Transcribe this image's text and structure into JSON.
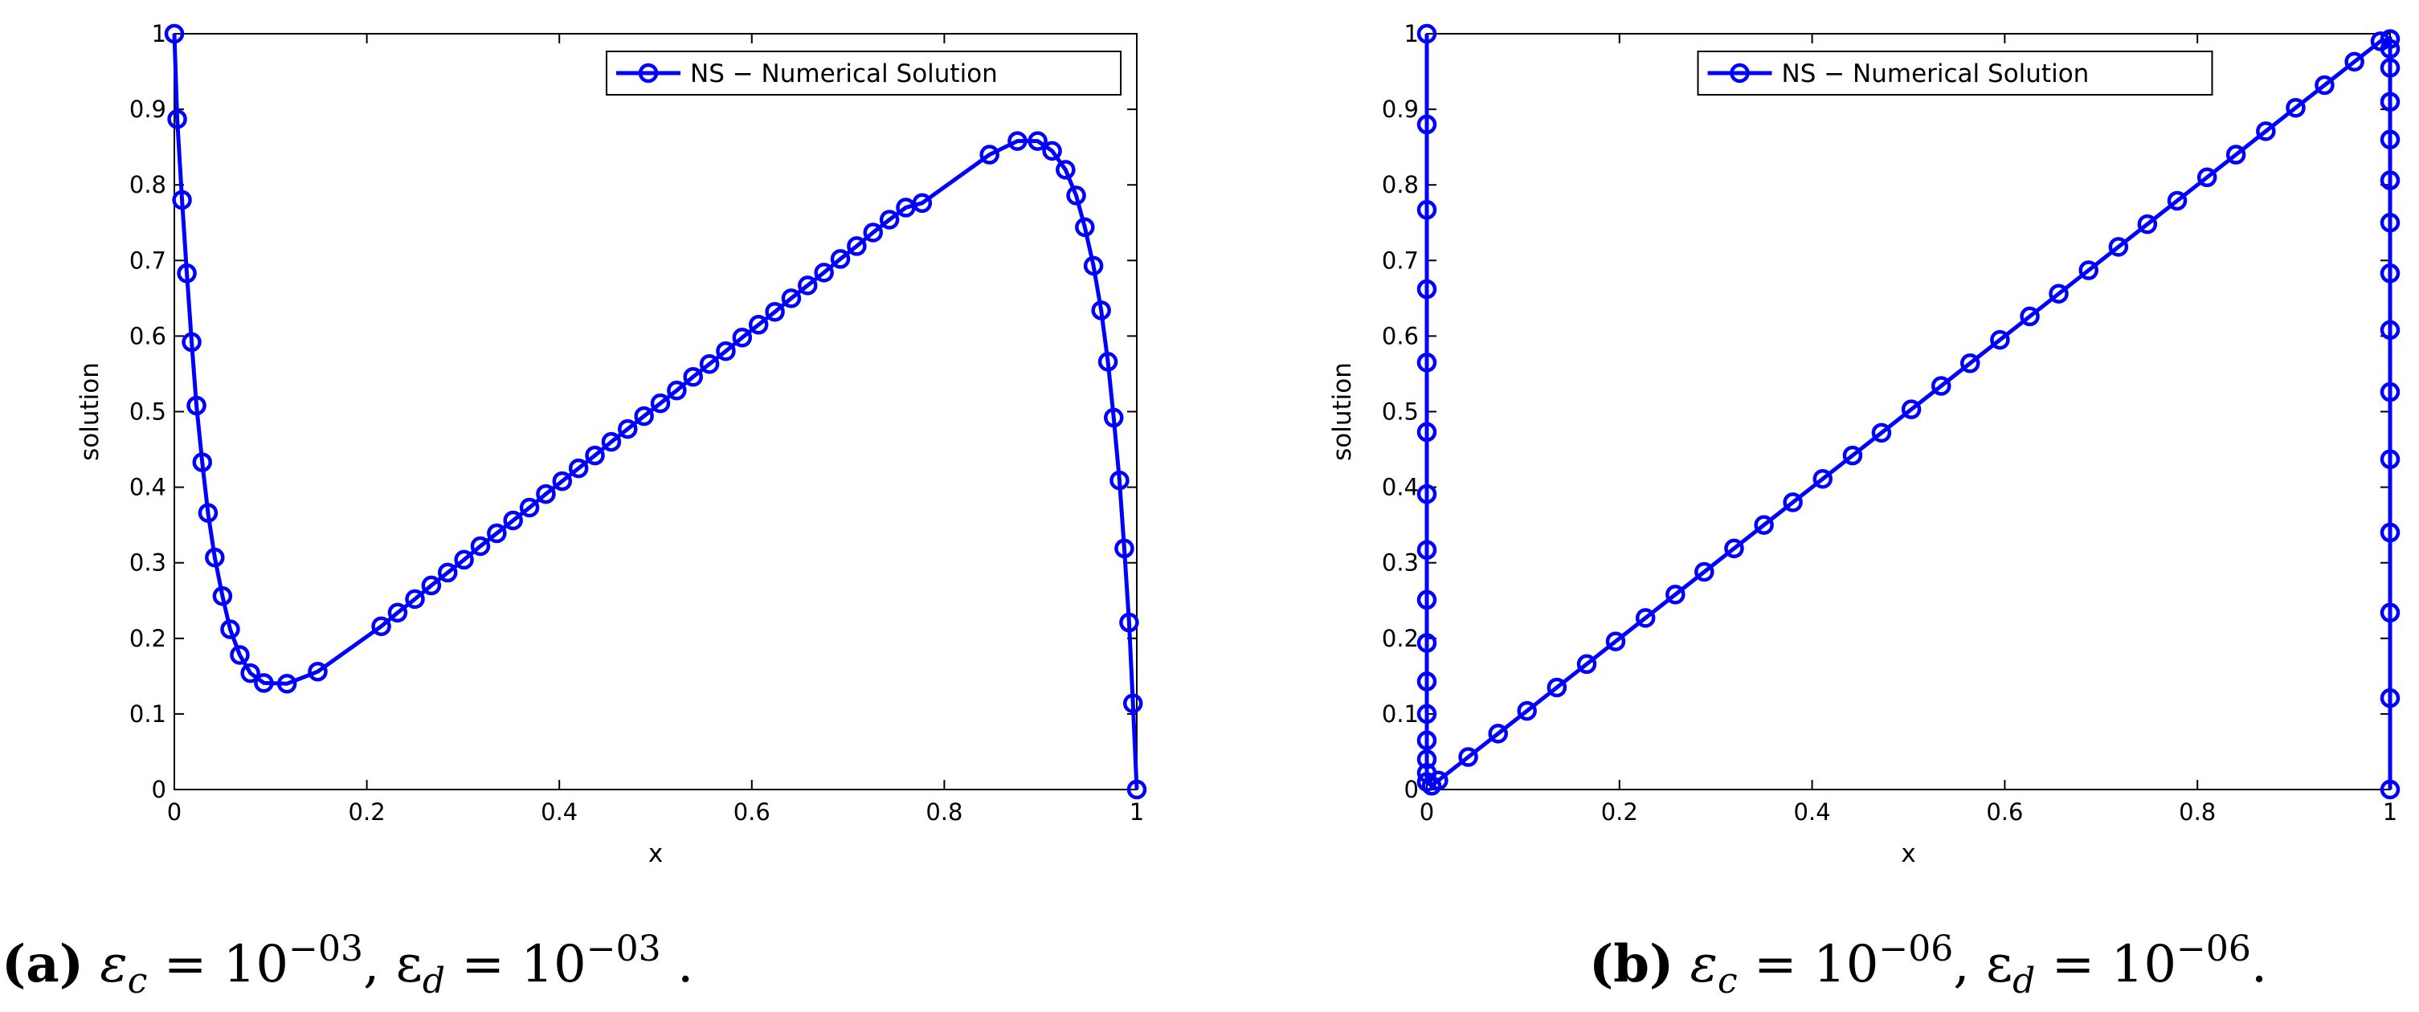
{
  "chart_data": [
    {
      "type": "line",
      "xlabel": "x",
      "ylabel": "solution",
      "xlim": [
        0,
        1
      ],
      "ylim": [
        0,
        1
      ],
      "xticks": [
        0,
        0.2,
        0.4,
        0.6,
        0.8,
        1
      ],
      "yticks": [
        0,
        0.1,
        0.2,
        0.3,
        0.4,
        0.5,
        0.6,
        0.7,
        0.8,
        0.9,
        1
      ],
      "legend": "northeast",
      "series": [
        {
          "name": "NS − Numerical Solution",
          "color": "#0000ff",
          "x": [
            0,
            0.003,
            0.008,
            0.013,
            0.018,
            0.023,
            0.029,
            0.035,
            0.042,
            0.05,
            0.058,
            0.068,
            0.079,
            0.093,
            0.117,
            0.149,
            0.215,
            0.232,
            0.25,
            0.267,
            0.284,
            0.301,
            0.318,
            0.335,
            0.352,
            0.369,
            0.386,
            0.403,
            0.42,
            0.437,
            0.454,
            0.471,
            0.488,
            0.505,
            0.522,
            0.539,
            0.556,
            0.573,
            0.59,
            0.607,
            0.624,
            0.641,
            0.658,
            0.675,
            0.692,
            0.709,
            0.726,
            0.743,
            0.76,
            0.777,
            0.847,
            0.876,
            0.897,
            0.912,
            0.926,
            0.937,
            0.946,
            0.955,
            0.963,
            0.97,
            0.976,
            0.982,
            0.987,
            0.992,
            0.996,
            1
          ],
          "values": [
            1,
            0.887,
            0.78,
            0.683,
            0.592,
            0.508,
            0.433,
            0.366,
            0.307,
            0.256,
            0.212,
            0.178,
            0.154,
            0.141,
            0.14,
            0.156,
            0.216,
            0.234,
            0.252,
            0.27,
            0.287,
            0.304,
            0.322,
            0.339,
            0.356,
            0.373,
            0.391,
            0.408,
            0.425,
            0.442,
            0.46,
            0.477,
            0.494,
            0.511,
            0.528,
            0.546,
            0.563,
            0.58,
            0.598,
            0.615,
            0.632,
            0.65,
            0.667,
            0.684,
            0.702,
            0.719,
            0.737,
            0.754,
            0.77,
            0.776,
            0.84,
            0.858,
            0.858,
            0.845,
            0.82,
            0.786,
            0.744,
            0.693,
            0.634,
            0.566,
            0.492,
            0.409,
            0.319,
            0.221,
            0.114,
            0
          ]
        }
      ],
      "caption": [
        {
          "text": "(a)",
          "style": "bold"
        },
        {
          "text": " ε"
        },
        {
          "text": "c",
          "style": "sub"
        },
        {
          "text": " = 10"
        },
        {
          "text": "−03",
          "style": "sup"
        },
        {
          "text": ", ε"
        },
        {
          "text": "d",
          "style": "sub"
        },
        {
          "text": " = 10"
        },
        {
          "text": "−03",
          "style": "sup"
        },
        {
          "text": " ."
        }
      ]
    },
    {
      "type": "line",
      "xlabel": "x",
      "ylabel": "solution",
      "xlim": [
        0,
        1
      ],
      "ylim": [
        0,
        1
      ],
      "xticks": [
        0,
        0.2,
        0.4,
        0.6,
        0.8,
        1
      ],
      "yticks": [
        0,
        0.1,
        0.2,
        0.3,
        0.4,
        0.5,
        0.6,
        0.7,
        0.8,
        0.9,
        1
      ],
      "legend": "north",
      "series": [
        {
          "name": "NS − Numerical Solution",
          "color": "#0000ff",
          "x": [
            0,
            0,
            0,
            0,
            0,
            0,
            0,
            0,
            0,
            0,
            0,
            0,
            0,
            0,
            0,
            0,
            0.005,
            0.012,
            0.043,
            0.074,
            0.104,
            0.135,
            0.166,
            0.196,
            0.227,
            0.258,
            0.288,
            0.319,
            0.35,
            0.38,
            0.411,
            0.442,
            0.472,
            0.503,
            0.534,
            0.564,
            0.595,
            0.626,
            0.656,
            0.687,
            0.718,
            0.748,
            0.779,
            0.81,
            0.84,
            0.871,
            0.902,
            0.932,
            0.963,
            0.99,
            1,
            1,
            1,
            1,
            1,
            1,
            1,
            1,
            1,
            1,
            1,
            1,
            1,
            1,
            1
          ],
          "values": [
            1,
            0.88,
            0.767,
            0.662,
            0.565,
            0.473,
            0.391,
            0.317,
            0.251,
            0.194,
            0.143,
            0.1,
            0.065,
            0.04,
            0.022,
            0.01,
            0.005,
            0.012,
            0.043,
            0.074,
            0.104,
            0.135,
            0.166,
            0.196,
            0.227,
            0.258,
            0.288,
            0.319,
            0.35,
            0.38,
            0.411,
            0.442,
            0.472,
            0.503,
            0.534,
            0.564,
            0.595,
            0.626,
            0.656,
            0.687,
            0.718,
            0.748,
            0.779,
            0.81,
            0.84,
            0.871,
            0.902,
            0.932,
            0.963,
            0.99,
            0.993,
            0.98,
            0.955,
            0.91,
            0.86,
            0.806,
            0.75,
            0.683,
            0.608,
            0.526,
            0.437,
            0.34,
            0.234,
            0.121,
            0
          ]
        }
      ],
      "caption": [
        {
          "text": "(b)",
          "style": "bold"
        },
        {
          "text": " ε"
        },
        {
          "text": "c",
          "style": "sub"
        },
        {
          "text": " = 10"
        },
        {
          "text": "−06",
          "style": "sup"
        },
        {
          "text": ", ε"
        },
        {
          "text": "d",
          "style": "sub"
        },
        {
          "text": " = 10"
        },
        {
          "text": "−06",
          "style": "sup"
        },
        {
          "text": "."
        }
      ]
    }
  ]
}
